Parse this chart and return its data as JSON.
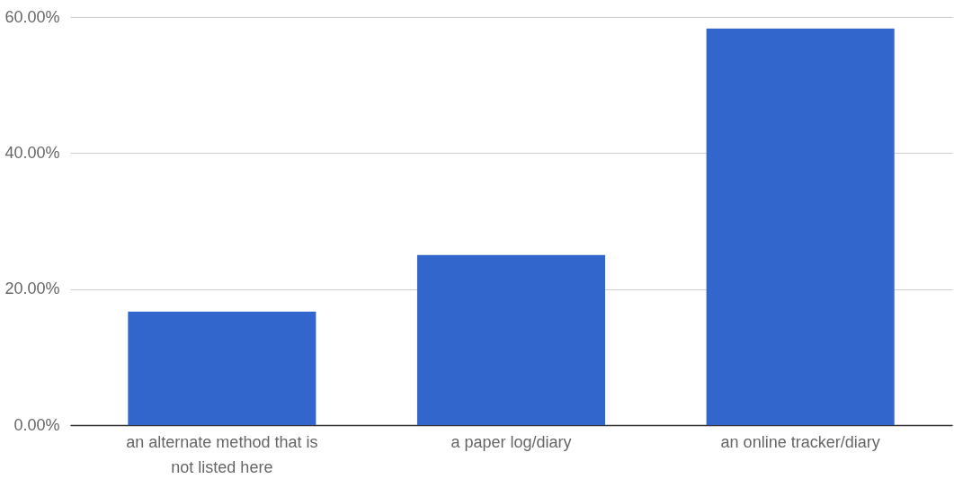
{
  "chart_data": {
    "type": "bar",
    "categories": [
      "an alternate method that is not listed here",
      "a paper log/diary",
      "an online tracker/diary"
    ],
    "values": [
      16.7,
      25.0,
      58.3
    ],
    "color": "#3366cc",
    "ylim": [
      0,
      60
    ],
    "yticks": [
      {
        "value": 0,
        "label": "0.00%"
      },
      {
        "value": 20,
        "label": "20.00%"
      },
      {
        "value": 40,
        "label": "40.00%"
      },
      {
        "value": 60,
        "label": "60.00%"
      }
    ],
    "grid": "y"
  }
}
